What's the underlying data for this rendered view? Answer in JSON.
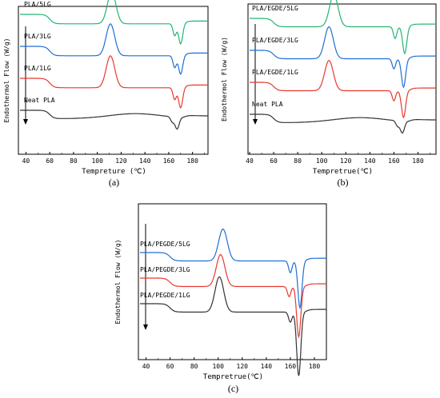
{
  "panels": [
    {
      "label": "(a)",
      "ylabel": "Endothermol Flow (W/g)",
      "xlabel": "Tempreture (℃)"
    },
    {
      "label": "(b)",
      "ylabel": "Endothermol Flow (W/g)",
      "xlabel": "Tempretrue(℃)"
    },
    {
      "label": "(c)",
      "ylabel": "Endothermol Flow (W/g)",
      "xlabel": "Tempretrue(℃)"
    }
  ],
  "chart_data": [
    {
      "type": "line",
      "title": "",
      "xlabel": "Tempreture (℃)",
      "ylabel": "Endothermol Flow (W/g)",
      "xlim": [
        35,
        193
      ],
      "xticks": [
        40,
        60,
        80,
        100,
        120,
        140,
        160,
        180
      ],
      "grid": false,
      "series": [
        {
          "name": "PLA/5LG",
          "color": "#22b573",
          "offset": 3,
          "glass_step": 0.28,
          "cryst_peak": {
            "x": 112,
            "h": 0.95
          },
          "melt_shoulder": {
            "x": 165,
            "d": 0.35
          },
          "melt_peak": {
            "x": 170,
            "d": 0.6
          }
        },
        {
          "name": "PLA/3LG",
          "color": "#1f6fd6",
          "offset": 2,
          "glass_step": 0.28,
          "cryst_peak": {
            "x": 111,
            "h": 0.95
          },
          "melt_shoulder": {
            "x": 165,
            "d": 0.35
          },
          "melt_peak": {
            "x": 170,
            "d": 0.55
          }
        },
        {
          "name": "PLA/1LG",
          "color": "#e8392f",
          "offset": 1,
          "glass_step": 0.28,
          "cryst_peak": {
            "x": 111,
            "h": 0.95
          },
          "melt_shoulder": {
            "x": 165,
            "d": 0.35
          },
          "melt_peak": {
            "x": 170,
            "d": 0.6
          }
        },
        {
          "name": "Neat PLA",
          "color": "#333333",
          "offset": 0,
          "glass_step": 0.25,
          "cryst_peak": {
            "x": 132,
            "h": 0.15
          },
          "melt_shoulder": {
            "x": 163,
            "d": 0.15
          },
          "melt_peak": {
            "x": 167,
            "d": 0.35
          }
        }
      ]
    },
    {
      "type": "line",
      "title": "",
      "xlabel": "Tempretrue(℃)",
      "ylabel": "Endothermol Flow (W/g)",
      "xlim": [
        40,
        195
      ],
      "xticks": [
        40,
        60,
        80,
        100,
        120,
        140,
        160,
        180
      ],
      "grid": false,
      "series": [
        {
          "name": "PLA/EGDE/5LG",
          "color": "#22b573",
          "offset": 3,
          "glass_step": 0.25,
          "cryst_peak": {
            "x": 110,
            "h": 0.95
          },
          "melt_shoulder": {
            "x": 161,
            "d": 0.35
          },
          "melt_peak": {
            "x": 169,
            "d": 0.8
          }
        },
        {
          "name": "PLA/EGDE/3LG",
          "color": "#1f6fd6",
          "offset": 2,
          "glass_step": 0.25,
          "cryst_peak": {
            "x": 106,
            "h": 0.95
          },
          "melt_shoulder": {
            "x": 160,
            "d": 0.3
          },
          "melt_peak": {
            "x": 168,
            "d": 0.85
          }
        },
        {
          "name": "PLA/EGDE/1LG",
          "color": "#e8392f",
          "offset": 1,
          "glass_step": 0.25,
          "cryst_peak": {
            "x": 106,
            "h": 0.9
          },
          "melt_shoulder": {
            "x": 160,
            "d": 0.3
          },
          "melt_peak": {
            "x": 168,
            "d": 0.8
          }
        },
        {
          "name": "Neat PLA",
          "color": "#333333",
          "offset": 0,
          "glass_step": 0.25,
          "cryst_peak": {
            "x": 132,
            "h": 0.15
          },
          "melt_shoulder": {
            "x": 163,
            "d": 0.15
          },
          "melt_peak": {
            "x": 167,
            "d": 0.35
          }
        }
      ]
    },
    {
      "type": "line",
      "title": "",
      "xlabel": "Tempretrue(℃)",
      "ylabel": "Endothermol Flow (W/g)",
      "xlim": [
        35,
        190
      ],
      "xticks": [
        40,
        60,
        80,
        100,
        120,
        140,
        160,
        180
      ],
      "grid": false,
      "series": [
        {
          "name": "PLA/PEGDE/5LG",
          "color": "#1f6fd6",
          "offset": 2,
          "glass_step": 0.25,
          "cryst_peak": {
            "x": 104,
            "h": 0.95
          },
          "melt_shoulder": {
            "x": 160,
            "d": 0.35
          },
          "melt_peak": {
            "x": 168,
            "d": 1.4
          }
        },
        {
          "name": "PLA/PEGDE/3LG",
          "color": "#e8392f",
          "offset": 1,
          "glass_step": 0.25,
          "cryst_peak": {
            "x": 102,
            "h": 0.95
          },
          "melt_shoulder": {
            "x": 159,
            "d": 0.3
          },
          "melt_peak": {
            "x": 167,
            "d": 1.5
          }
        },
        {
          "name": "PLA/PEGDE/1LG",
          "color": "#333333",
          "offset": 0,
          "glass_step": 0.25,
          "cryst_peak": {
            "x": 101,
            "h": 1.05
          },
          "melt_shoulder": {
            "x": 160,
            "d": 0.3
          },
          "melt_peak": {
            "x": 167,
            "d": 1.9
          }
        }
      ]
    }
  ]
}
